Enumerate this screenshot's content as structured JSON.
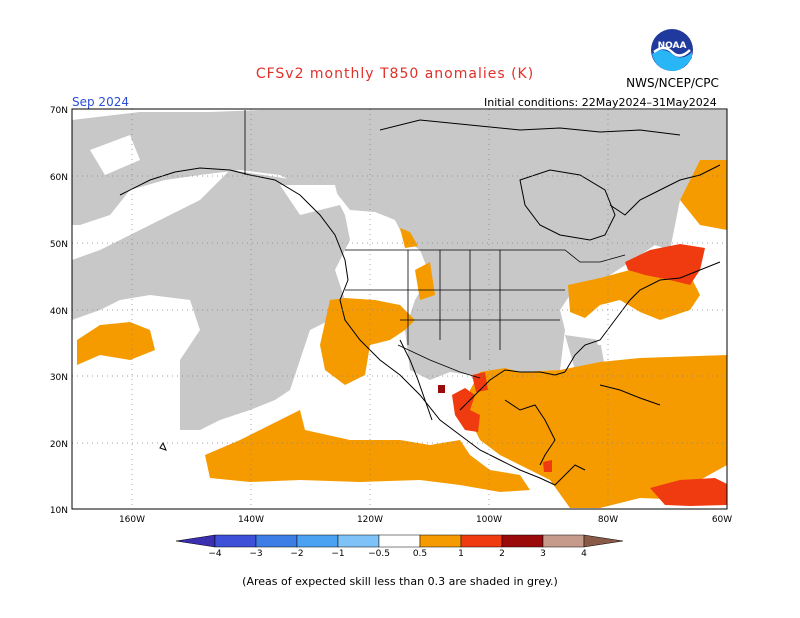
{
  "title": "CFSv2 monthly T850 anomalies (K)",
  "agency": "NWS/NCEP/CPC",
  "logo_text": "NOAA",
  "period": "Sep 2024",
  "initial_conditions": "Initial conditions: 22May2024–31May2024",
  "footnote": "(Areas of expected skill less than 0.3 are shaded in grey.)",
  "lat_labels": [
    "70N",
    "60N",
    "50N",
    "40N",
    "30N",
    "20N",
    "10N"
  ],
  "lon_labels": [
    "160W",
    "140W",
    "120W",
    "100W",
    "80W",
    "60W"
  ],
  "colorbar": {
    "labels": [
      "−4",
      "−3",
      "−2",
      "−1",
      "−0.5",
      "0.5",
      "1",
      "2",
      "3",
      "4"
    ],
    "colors": [
      "#3a2fb0",
      "#3e4fd8",
      "#3d7ee6",
      "#4ba2f2",
      "#7fc2f7",
      "#ffffff",
      "#f59b00",
      "#f03a10",
      "#9b0a0a",
      "#c79b8c",
      "#8a5a48"
    ]
  },
  "legend_colors": {
    "low_skill": "#c8c8c8",
    "warm_05_1": "#f59b00",
    "warm_1_2": "#f03a10",
    "warm_2_3": "#9b0a0a"
  }
}
